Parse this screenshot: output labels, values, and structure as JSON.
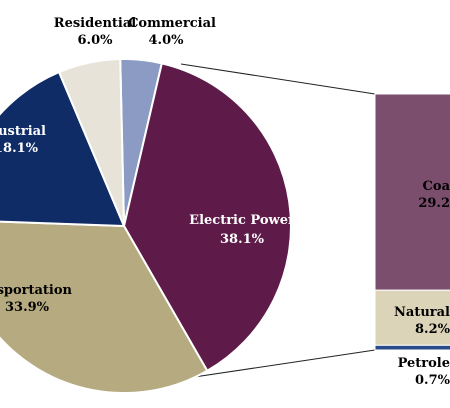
{
  "colors": {
    "electric": "#5e1a48",
    "transportation": "#b5aa80",
    "industrial": "#0f2c66",
    "residential": "#e8e3d8",
    "commercial": "#8b9bc4",
    "coal": "#7c4e6e",
    "natural_gas": "#dcd4b8",
    "petroleum": "#2a4b8a",
    "outline": "#ffffff",
    "text_dark": "#1a1a1a",
    "text_light": "#ffffff"
  },
  "chart_data": {
    "type": "pie",
    "slices": [
      {
        "key": "commercial",
        "label": "Commercial",
        "value_text": "4.0%",
        "value": 4.0
      },
      {
        "key": "electric",
        "label": "Electric Power",
        "value_text": "38.1%",
        "value": 38.1
      },
      {
        "key": "transportation",
        "label": "ansportation",
        "value_text": "33.9%",
        "value": 33.9
      },
      {
        "key": "industrial",
        "label": "dustrial",
        "value_text": "18.1%",
        "value": 18.1
      },
      {
        "key": "residential",
        "label": "Residential",
        "value_text": "6.0%",
        "value": 6.0
      }
    ],
    "breakdown": {
      "of": "electric",
      "type": "stacked-bar",
      "segments": [
        {
          "key": "coal",
          "label": "Coa",
          "value_text": "29.2",
          "value": 29.2
        },
        {
          "key": "natural_gas",
          "label": "Natural",
          "value_text": "8.2%",
          "value": 8.2
        },
        {
          "key": "petroleum",
          "label": "Petrole",
          "value_text": "0.7%",
          "value": 0.7
        }
      ]
    }
  }
}
